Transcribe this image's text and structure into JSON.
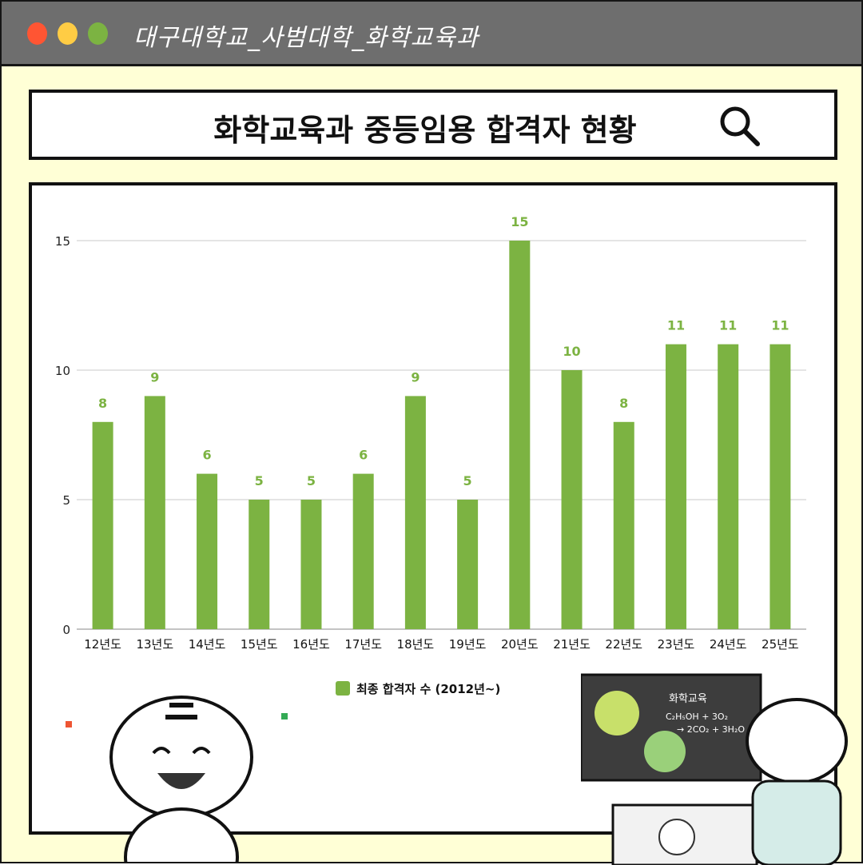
{
  "window": {
    "title": "대구대학교_사범대학_화학교육과",
    "dots": [
      "#ff5533",
      "#ffcc44",
      "#7cb342"
    ]
  },
  "search": {
    "text": "화학교육과 중등임용 합격자 현황",
    "icon": "search-icon"
  },
  "chart_data": {
    "type": "bar",
    "categories": [
      "12년도",
      "13년도",
      "14년도",
      "15년도",
      "16년도",
      "17년도",
      "18년도",
      "19년도",
      "20년도",
      "21년도",
      "22년도",
      "23년도",
      "24년도",
      "25년도"
    ],
    "series": [
      {
        "name": "최종 합격자 수 (2012년~)",
        "values": [
          8,
          9,
          6,
          5,
          5,
          6,
          9,
          5,
          15,
          10,
          8,
          11,
          11,
          11
        ],
        "color": "#7cb342"
      }
    ],
    "yticks": [
      0,
      5,
      10,
      15
    ],
    "ylim": [
      0,
      15
    ],
    "grid": true,
    "legend": "bottom"
  },
  "illustration": {
    "board_text": "화학교육",
    "equation_1": "C₂H₅OH + 3O₂",
    "equation_2": "→ 2CO₂ + 3H₂O"
  }
}
